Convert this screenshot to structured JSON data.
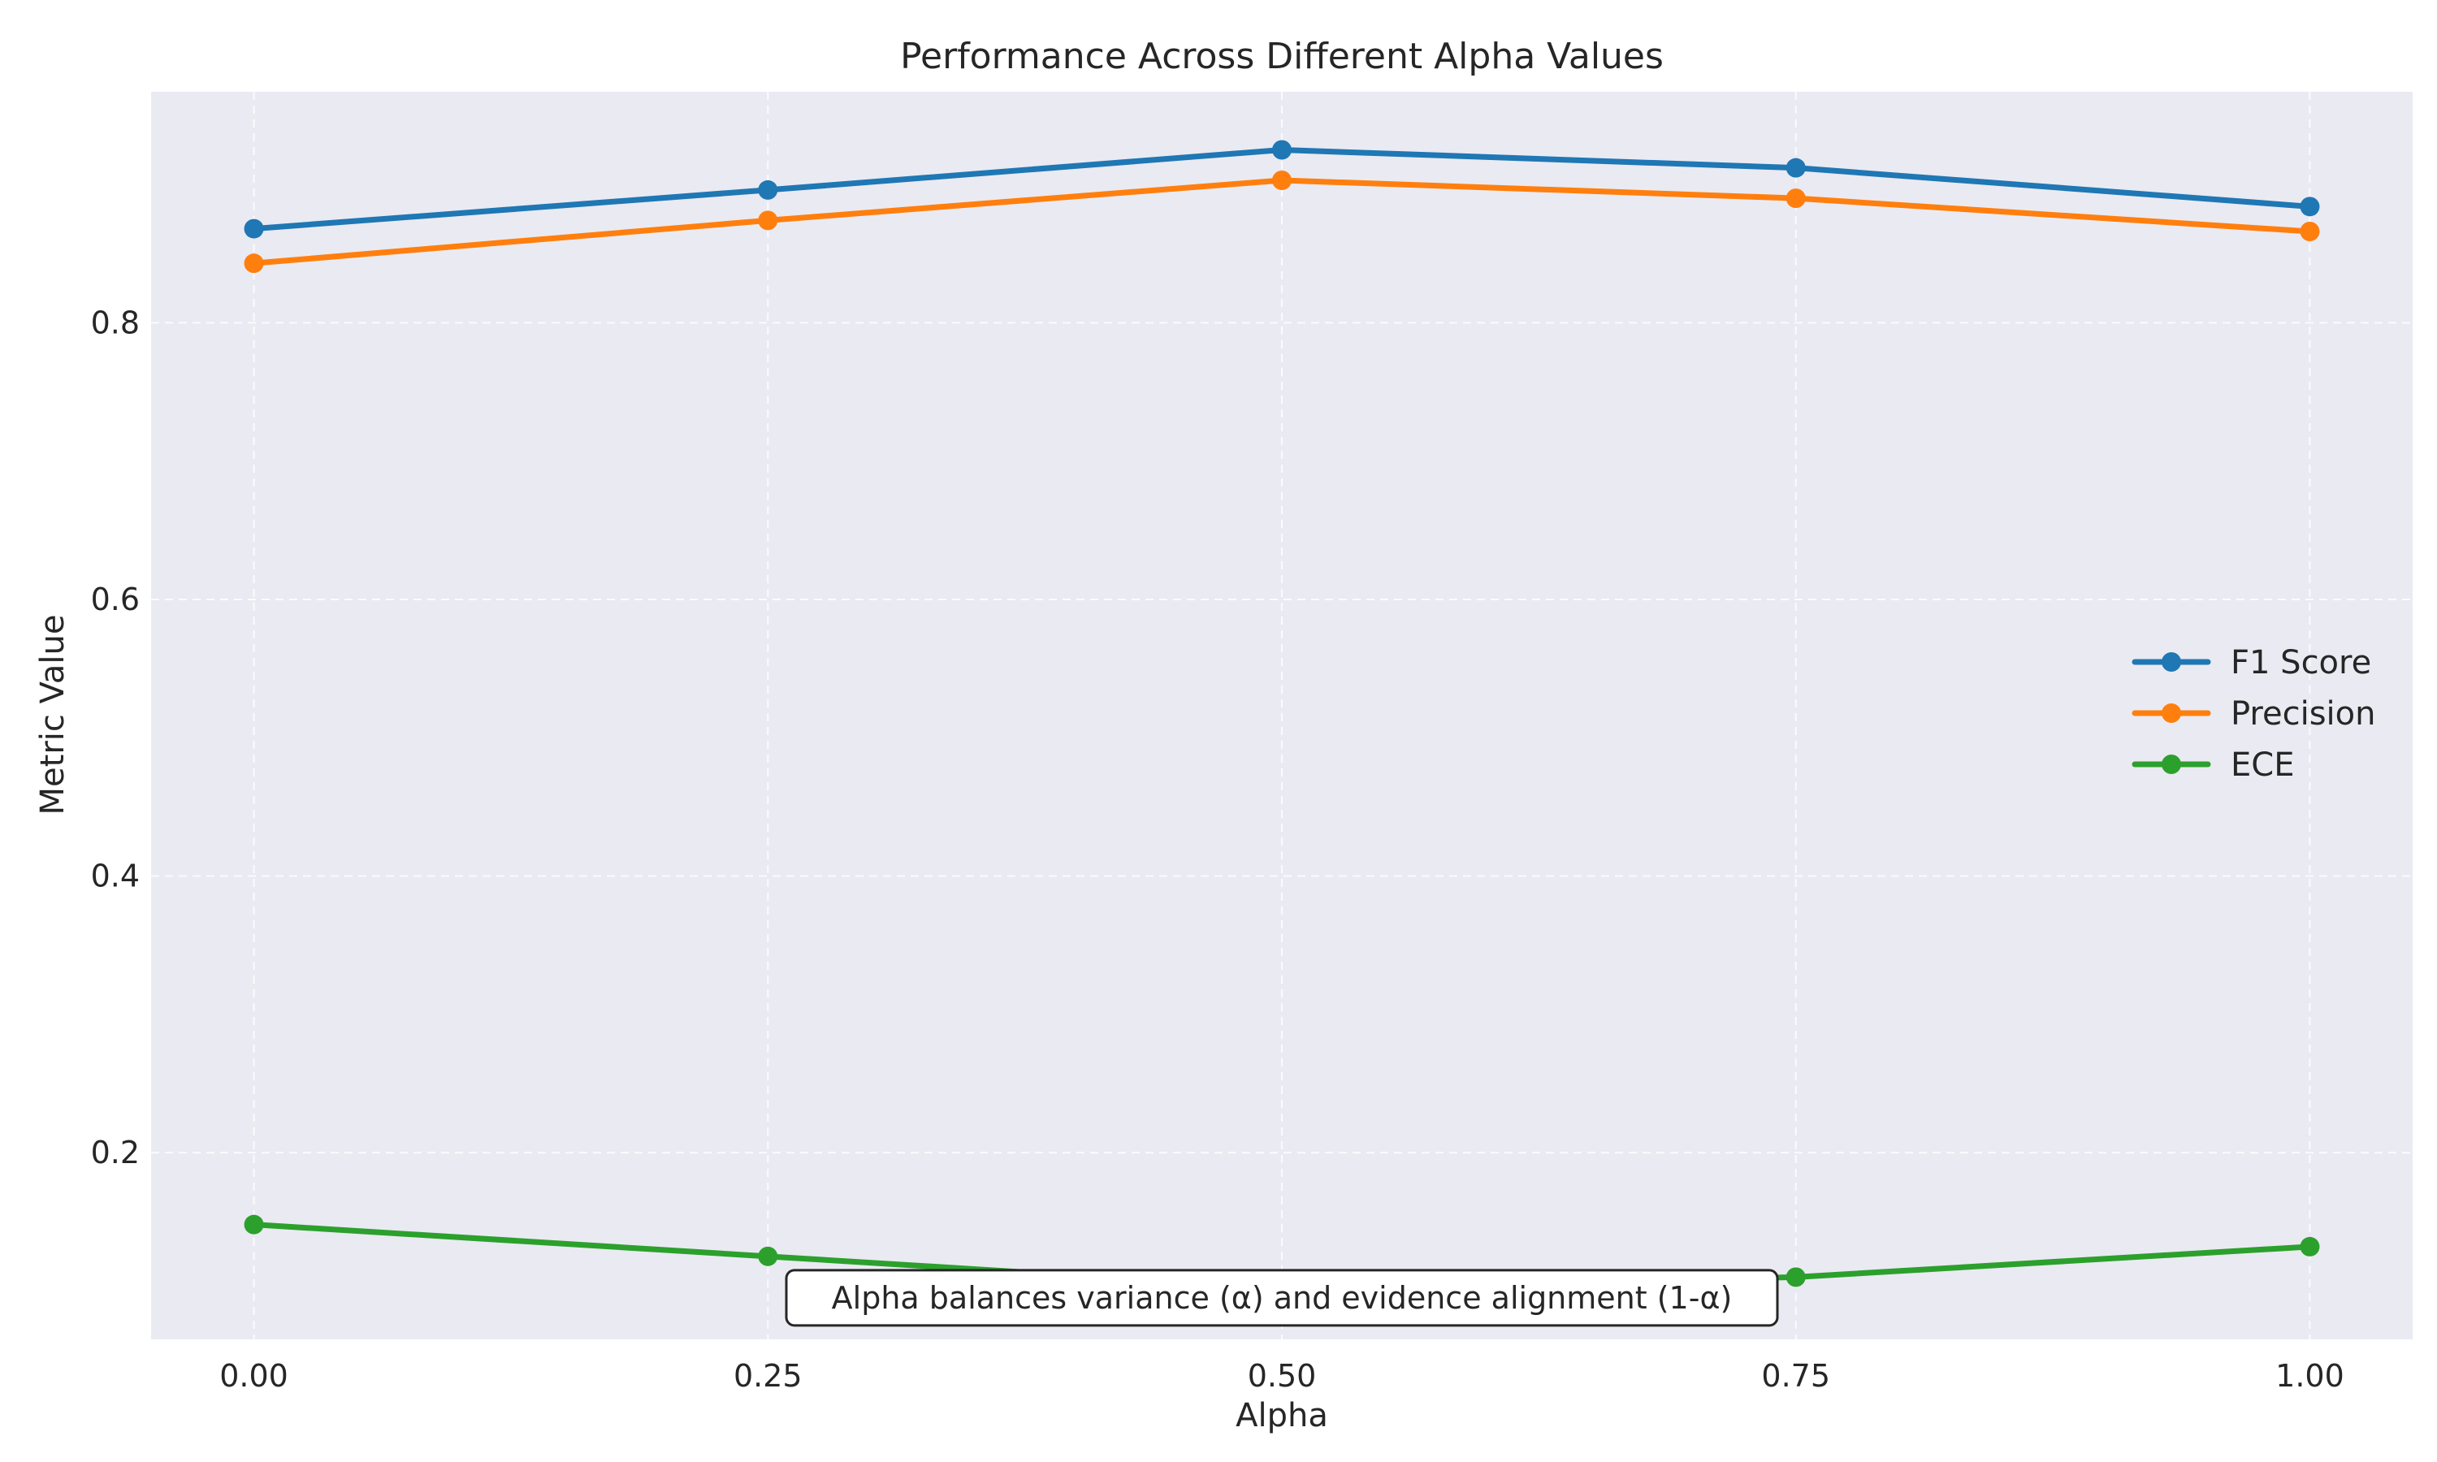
{
  "colors": {
    "plot_background": "#EAEAF2",
    "grid": "#FFFFFF",
    "text": "#262626"
  },
  "chart_data": {
    "type": "line",
    "title": "Performance Across Different Alpha Values",
    "xlabel": "Alpha",
    "ylabel": "Metric Value",
    "x": [
      0.0,
      0.25,
      0.5,
      0.75,
      1.0
    ],
    "x_tick_labels": [
      "0.00",
      "0.25",
      "0.50",
      "0.75",
      "1.00"
    ],
    "y_ticks": [
      0.2,
      0.4,
      0.6,
      0.8
    ],
    "y_tick_labels": [
      "0.2",
      "0.4",
      "0.6",
      "0.8"
    ],
    "xlim": [
      -0.05,
      1.05
    ],
    "ylim": [
      0.065,
      0.967
    ],
    "grid": true,
    "legend_position": "center-right",
    "series": [
      {
        "name": "F1 Score",
        "color": "#1F77B4",
        "values": [
          0.868,
          0.896,
          0.925,
          0.912,
          0.884
        ]
      },
      {
        "name": "Precision",
        "color": "#FF7F0E",
        "values": [
          0.843,
          0.874,
          0.903,
          0.89,
          0.866
        ]
      },
      {
        "name": "ECE",
        "color": "#2CA02C",
        "values": [
          0.148,
          0.125,
          0.102,
          0.11,
          0.132
        ]
      }
    ],
    "annotation": {
      "text": "Alpha balances variance (α) and evidence alignment (1-α)",
      "x": 0.5,
      "y": 0.095
    }
  }
}
